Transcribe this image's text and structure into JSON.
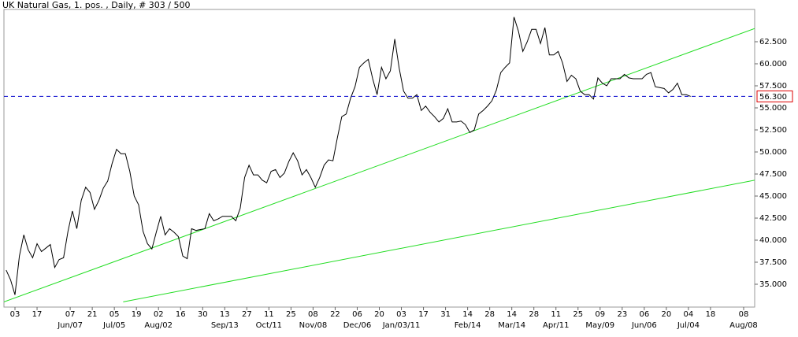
{
  "chart_data": {
    "type": "line",
    "title": "UK Natural Gas, 1. pos. , Daily, # 303 / 500",
    "xlim": [
      0,
      340
    ],
    "ylim": [
      32.41,
      66.16
    ],
    "yticks": [
      {
        "value": 35,
        "label": "35.000"
      },
      {
        "value": 37.5,
        "label": "37.500"
      },
      {
        "value": 40,
        "label": "40.000"
      },
      {
        "value": 42.5,
        "label": "42.500"
      },
      {
        "value": 45,
        "label": "45.000"
      },
      {
        "value": 47.5,
        "label": "47.500"
      },
      {
        "value": 50,
        "label": "50.000"
      },
      {
        "value": 52.5,
        "label": "52.500"
      },
      {
        "value": 55,
        "label": "55.000"
      },
      {
        "value": 57.5,
        "label": "57.500"
      },
      {
        "value": 60,
        "label": "60.000"
      },
      {
        "value": 62.5,
        "label": "62.500"
      }
    ],
    "xticks": [
      {
        "value": 5,
        "label": "03"
      },
      {
        "value": 15,
        "label": "17"
      },
      {
        "value": 30,
        "label": "07"
      },
      {
        "value": 40,
        "label": "21"
      },
      {
        "value": 50,
        "label": "05"
      },
      {
        "value": 60,
        "label": "19"
      },
      {
        "value": 70,
        "label": "02"
      },
      {
        "value": 80,
        "label": "16"
      },
      {
        "value": 90,
        "label": "30"
      },
      {
        "value": 100,
        "label": "13"
      },
      {
        "value": 110,
        "label": "27"
      },
      {
        "value": 120,
        "label": "11"
      },
      {
        "value": 130,
        "label": "25"
      },
      {
        "value": 140,
        "label": "08"
      },
      {
        "value": 150,
        "label": "22"
      },
      {
        "value": 160,
        "label": "06"
      },
      {
        "value": 170,
        "label": "20"
      },
      {
        "value": 180,
        "label": "03"
      },
      {
        "value": 190,
        "label": "17"
      },
      {
        "value": 200,
        "label": "31"
      },
      {
        "value": 210,
        "label": "14"
      },
      {
        "value": 220,
        "label": "28"
      },
      {
        "value": 230,
        "label": "14"
      },
      {
        "value": 240,
        "label": "28"
      },
      {
        "value": 250,
        "label": "11"
      },
      {
        "value": 260,
        "label": "25"
      },
      {
        "value": 270,
        "label": "09"
      },
      {
        "value": 280,
        "label": "23"
      },
      {
        "value": 290,
        "label": "06"
      },
      {
        "value": 300,
        "label": "20"
      },
      {
        "value": 310,
        "label": "04"
      },
      {
        "value": 320,
        "label": "18"
      },
      {
        "value": 335,
        "label": "08"
      }
    ],
    "xticks_months": [
      {
        "value": 30,
        "label": "Jun/07"
      },
      {
        "value": 50,
        "label": "Jul/05"
      },
      {
        "value": 70,
        "label": "Aug/02"
      },
      {
        "value": 100,
        "label": "Sep/13"
      },
      {
        "value": 120,
        "label": "Oct/11"
      },
      {
        "value": 140,
        "label": "Nov/08"
      },
      {
        "value": 160,
        "label": "Dec/06"
      },
      {
        "value": 180,
        "label": "Jan/03/11"
      },
      {
        "value": 210,
        "label": "Feb/14"
      },
      {
        "value": 230,
        "label": "Mar/14"
      },
      {
        "value": 250,
        "label": "Apr/11"
      },
      {
        "value": 270,
        "label": "May/09"
      },
      {
        "value": 290,
        "label": "Jun/06"
      },
      {
        "value": 310,
        "label": "Jul/04"
      },
      {
        "value": 335,
        "label": "Aug/08"
      }
    ],
    "series": [
      {
        "color": "#000000",
        "x": [
          1,
          3,
          5,
          7,
          9,
          11,
          13,
          15,
          17,
          19,
          21,
          23,
          25,
          27,
          29,
          31,
          33,
          35,
          37,
          39,
          41,
          43,
          45,
          47,
          49,
          51,
          53,
          55,
          57,
          59,
          61,
          63,
          65,
          67,
          69,
          71,
          73,
          75,
          77,
          79,
          81,
          83,
          85,
          87,
          89,
          91,
          93,
          95,
          97,
          99,
          101,
          103,
          105,
          107,
          109,
          111,
          113,
          115,
          117,
          119,
          121,
          123,
          125,
          127,
          129,
          131,
          133,
          135,
          137,
          139,
          141,
          143,
          145,
          147,
          149,
          151,
          153,
          155,
          157,
          159,
          161,
          163,
          165,
          167,
          169,
          171,
          173,
          175,
          177,
          179,
          181,
          183,
          185,
          187,
          189,
          191,
          193,
          195,
          197,
          199,
          201,
          203,
          205,
          207,
          209,
          211,
          213,
          215,
          217,
          219,
          221,
          223,
          225,
          227,
          229,
          231,
          233,
          235,
          237,
          239,
          241,
          243,
          245,
          247,
          249,
          251,
          253,
          255,
          257,
          259,
          261,
          263,
          265,
          267,
          269,
          271,
          273,
          275,
          277,
          279,
          281,
          283,
          285,
          287,
          289,
          291,
          293,
          295,
          297,
          299,
          301,
          303,
          305,
          307,
          309,
          311
        ],
        "values": [
          36.6,
          35.5,
          33.8,
          38.2,
          40.6,
          38.9,
          38.0,
          39.6,
          38.7,
          39.1,
          39.5,
          36.9,
          37.8,
          38.0,
          41.0,
          43.3,
          41.3,
          44.5,
          46.0,
          45.4,
          43.5,
          44.5,
          45.9,
          46.7,
          48.7,
          50.3,
          49.8,
          49.8,
          47.8,
          45.0,
          44.0,
          41.0,
          39.6,
          39.0,
          40.9,
          42.7,
          40.6,
          41.3,
          40.9,
          40.4,
          38.2,
          37.9,
          41.3,
          41.1,
          41.2,
          41.3,
          43.0,
          42.2,
          42.4,
          42.7,
          42.7,
          42.7,
          42.2,
          43.6,
          47.1,
          48.5,
          47.4,
          47.4,
          46.8,
          46.5,
          47.8,
          48.0,
          47.1,
          47.6,
          48.9,
          49.9,
          49.0,
          47.4,
          48.0,
          47.1,
          46.0,
          47.1,
          48.5,
          49.1,
          49.0,
          51.6,
          54.0,
          54.3,
          56.1,
          57.4,
          59.6,
          60.1,
          60.5,
          58.3,
          56.5,
          59.6,
          58.3,
          59.2,
          62.8,
          59.5,
          56.9,
          56.1,
          56.1,
          56.5,
          54.7,
          55.2,
          54.5,
          54.0,
          53.4,
          53.8,
          54.9,
          53.4,
          53.4,
          53.5,
          53.1,
          52.2,
          52.5,
          54.3,
          54.7,
          55.2,
          55.8,
          57.0,
          59.0,
          59.6,
          60.1,
          65.3,
          63.7,
          61.4,
          62.5,
          63.9,
          63.9,
          62.3,
          64.1,
          61.0,
          61.0,
          61.4,
          60.1,
          58.0,
          58.7,
          58.3,
          56.9,
          56.5,
          56.5,
          56.0,
          58.4,
          57.8,
          57.5,
          58.3,
          58.3,
          58.3,
          58.8,
          58.4,
          58.3,
          58.3,
          58.3,
          58.8,
          59.0,
          57.4,
          57.3,
          57.2,
          56.7,
          57.1,
          57.8,
          56.5,
          56.5,
          56.3
        ]
      },
      {
        "color": "#22dd22",
        "x": [
          0,
          340
        ],
        "values": [
          33.0,
          64.0
        ]
      },
      {
        "color": "#22dd22",
        "x": [
          54,
          340
        ],
        "values": [
          33.0,
          46.8
        ]
      }
    ],
    "reference_line": {
      "value": 56.3,
      "label": "56.300",
      "color": "#0000cc",
      "label_border": "#dd0000"
    }
  }
}
